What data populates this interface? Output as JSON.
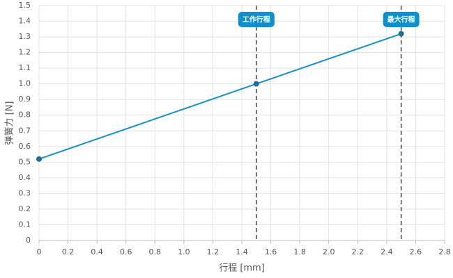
{
  "chart_data": {
    "type": "line",
    "x_label": "行程 [mm]",
    "y_label": "弹簧力 [N]",
    "x": [
      0,
      1.5,
      2.5
    ],
    "series": [
      {
        "color": "#1690cc",
        "values": [
          0.52,
          1.0,
          1.32
        ]
      }
    ],
    "annotations": [
      {
        "x": 1.5,
        "label": "工作行程"
      },
      {
        "x": 2.5,
        "label": "最大行程"
      }
    ],
    "annotation_color": "#0e90cf",
    "xlim": [
      0,
      2.8
    ],
    "xticks": [
      0,
      0.2,
      0.4,
      0.6,
      0.8,
      {
        "value": 1,
        "label": "1.0"
      },
      1.2,
      1.4,
      1.6,
      1.8,
      {
        "value": 2,
        "label": "2.0"
      },
      2.2,
      2.4,
      2.6,
      2.8
    ],
    "ylim": [
      0,
      1.5
    ],
    "yticks": [
      0,
      0.1,
      0.2,
      0.3,
      0.4,
      0.5,
      0.6,
      0.7,
      0.8,
      0.9,
      {
        "value": 1,
        "label": "1.0"
      },
      1.1,
      1.2,
      1.3,
      1.4,
      1.5
    ],
    "grid": true
  }
}
